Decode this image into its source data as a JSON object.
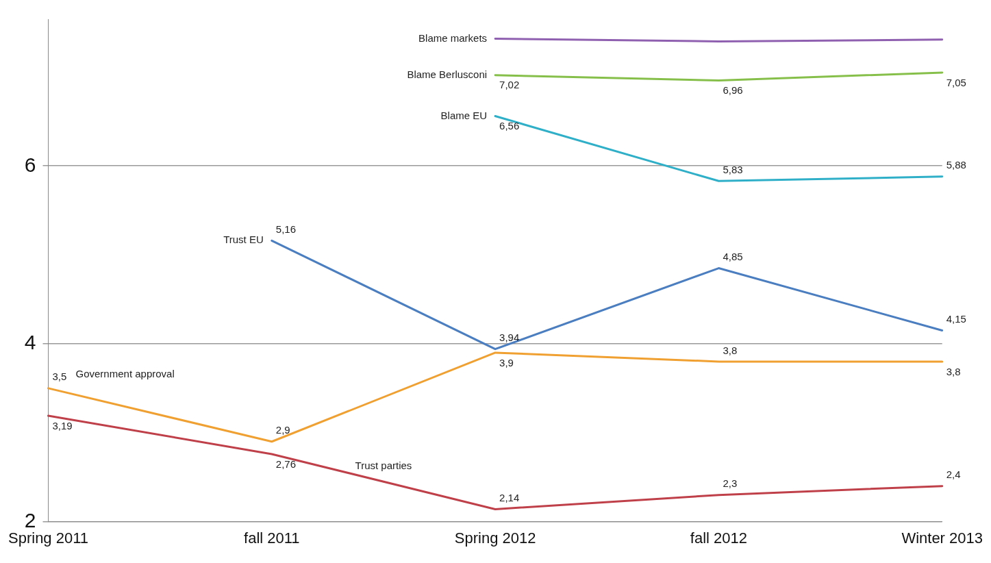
{
  "chart_data": {
    "type": "line",
    "categories": [
      "Spring 2011",
      "fall 2011",
      "Spring 2012",
      "fall 2012",
      "Winter 2013"
    ],
    "ylim": [
      2,
      7.65
    ],
    "yticks": [
      2,
      4,
      6
    ],
    "grid": "y",
    "legend": false,
    "marker": "none",
    "line_style": "solid",
    "series": [
      {
        "name": "Blame markets",
        "color": "#9060b0",
        "values": [
          null,
          null,
          7.43,
          7.4,
          7.42
        ],
        "value_labels": [
          null,
          null,
          null,
          null,
          null
        ]
      },
      {
        "name": "Blame Berlusconi",
        "color": "#86c04a",
        "values": [
          null,
          null,
          7.02,
          6.96,
          7.05
        ],
        "value_labels": [
          null,
          null,
          "7,02",
          "6,96",
          "7,05"
        ]
      },
      {
        "name": "Blame EU",
        "color": "#2fb0c8",
        "values": [
          null,
          null,
          6.56,
          5.83,
          5.88
        ],
        "value_labels": [
          null,
          null,
          "6,56",
          "5,83",
          "5,88"
        ]
      },
      {
        "name": "Trust EU",
        "color": "#4a7ec0",
        "values": [
          null,
          5.16,
          3.94,
          4.85,
          4.15
        ],
        "value_labels": [
          null,
          "5,16",
          "3,94",
          "4,85",
          "4,15"
        ]
      },
      {
        "name": "Government approval",
        "color": "#f0a030",
        "values": [
          3.5,
          2.9,
          3.9,
          3.8,
          3.8
        ],
        "value_labels": [
          "3,5",
          "2,9",
          "3,9",
          "3,8",
          "3,8"
        ]
      },
      {
        "name": "Trust parties",
        "color": "#c0404a",
        "values": [
          3.19,
          2.76,
          2.14,
          2.3,
          2.4
        ],
        "value_labels": [
          "3,19",
          "2,76",
          "2,14",
          "2,3",
          "2,4"
        ]
      }
    ]
  }
}
